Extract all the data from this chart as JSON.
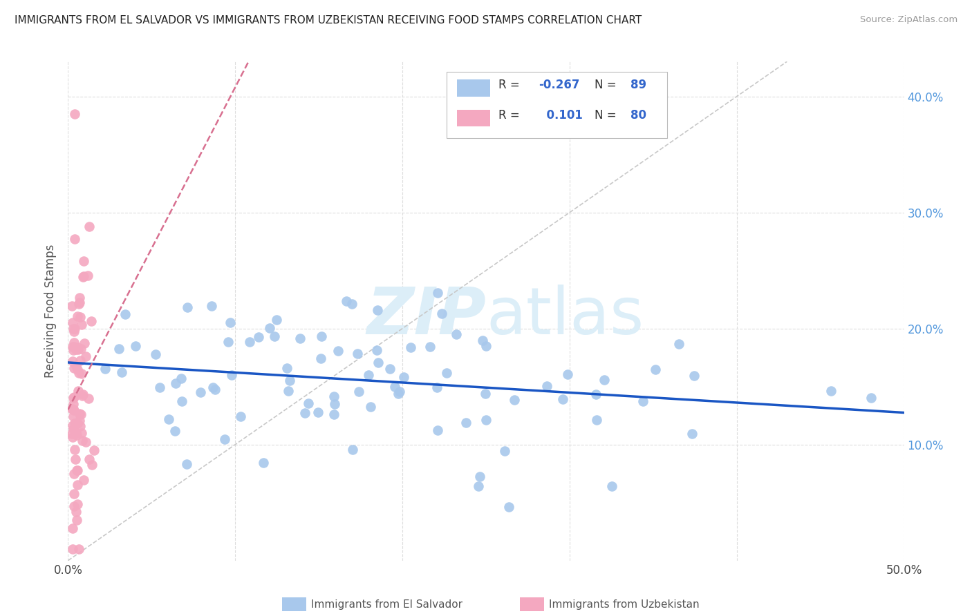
{
  "title": "IMMIGRANTS FROM EL SALVADOR VS IMMIGRANTS FROM UZBEKISTAN RECEIVING FOOD STAMPS CORRELATION CHART",
  "source": "Source: ZipAtlas.com",
  "ylabel": "Receiving Food Stamps",
  "xlim": [
    0.0,
    0.5
  ],
  "ylim": [
    0.0,
    0.43
  ],
  "yticks": [
    0.1,
    0.2,
    0.3,
    0.4
  ],
  "ytick_labels": [
    "10.0%",
    "20.0%",
    "30.0%",
    "40.0%"
  ],
  "legend_blue_r": "-0.267",
  "legend_blue_n": "89",
  "legend_pink_r": "0.101",
  "legend_pink_n": "80",
  "blue_color": "#A8C8EC",
  "pink_color": "#F4A8C0",
  "blue_line_color": "#1A56C4",
  "pink_line_color": "#D87090",
  "diagonal_color": "#C8C8C8",
  "watermark_zip": "ZIP",
  "watermark_atlas": "atlas",
  "blue_seed": 42,
  "pink_seed": 99
}
